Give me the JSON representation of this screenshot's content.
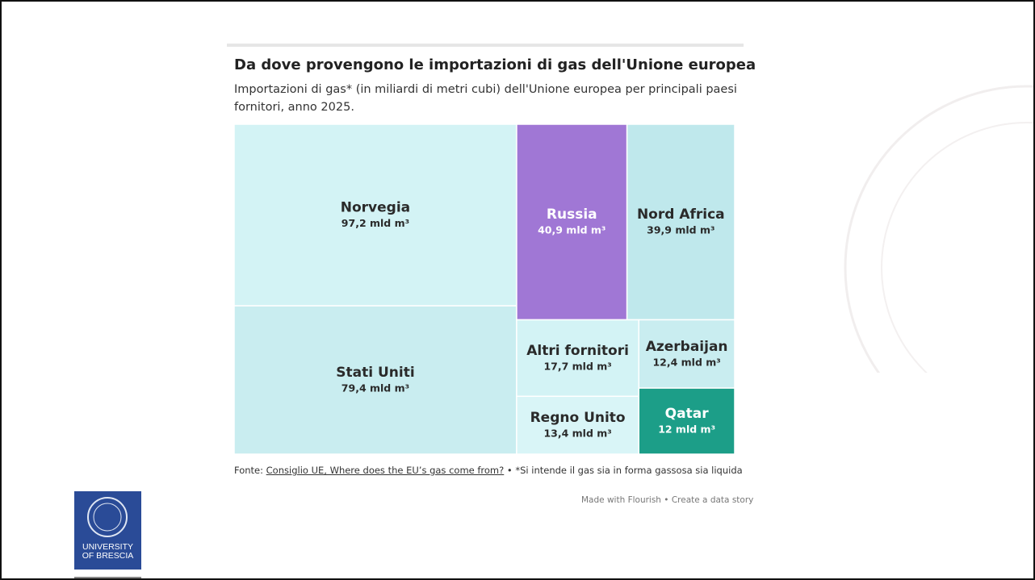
{
  "chart_data": {
    "type": "treemap",
    "title": "Da dove provengono le importazioni di gas dell'Unione europea",
    "subtitle": "Importazioni di gas* (in miliardi di metri cubi) dell'Unione europea per principali paesi fornitori, anno 2025.",
    "categories": [
      "Norvegia",
      "Stati Uniti",
      "Russia",
      "Nord Africa",
      "Altri fornitori",
      "Regno Unito",
      "Azerbaijan",
      "Qatar"
    ],
    "values": [
      97.2,
      79.4,
      40.9,
      39.9,
      17.7,
      13.4,
      12.4,
      12
    ],
    "value_labels": [
      "97,2 mld m³",
      "79,4 mld m³",
      "40,9 mld m³",
      "39,9 mld m³",
      "17,7 mld m³",
      "13,4 mld m³",
      "12,4 mld m³",
      "12 mld m³"
    ],
    "colors": [
      "#d3f3f5",
      "#c9edf0",
      "#a077d5",
      "#bfe8ec",
      "#d3f3f5",
      "#d9f5f7",
      "#c9edf0",
      "#1c9e88"
    ]
  },
  "source": {
    "prefix": "Fonte:",
    "link": "Consiglio UE, Where does the EU’s gas come from?",
    "note": "• *Si intende il gas sia in forma gassosa sia liquida"
  },
  "credit": "Made with Flourish • Create a data story",
  "logo": {
    "line1": "UNIVERSITY",
    "line2": "OF BRESCIA"
  }
}
